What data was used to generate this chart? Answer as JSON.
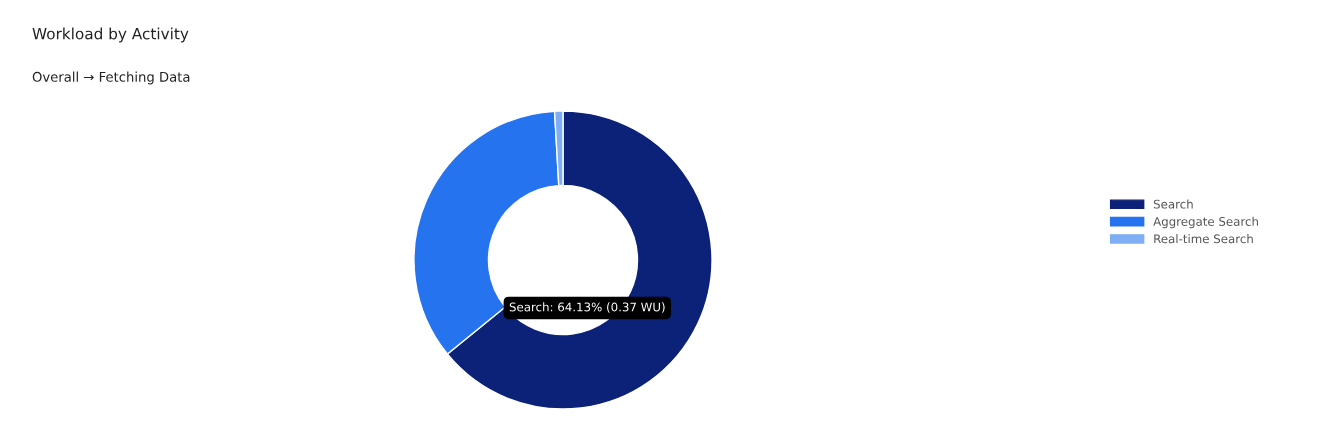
{
  "chart_data": {
    "type": "donut",
    "title": "Workload by Activity",
    "subtitle": "Overall → Fetching Data",
    "categories": [
      "Search",
      "Aggregate Search",
      "Real-time Search"
    ],
    "values": [
      64.13,
      34.97,
      0.9
    ],
    "colors": [
      "#0c2178",
      "#2673f0",
      "#80aef5"
    ],
    "legend": "right",
    "annotations": [
      "Search: 64.13% (0.37 WU)"
    ]
  }
}
